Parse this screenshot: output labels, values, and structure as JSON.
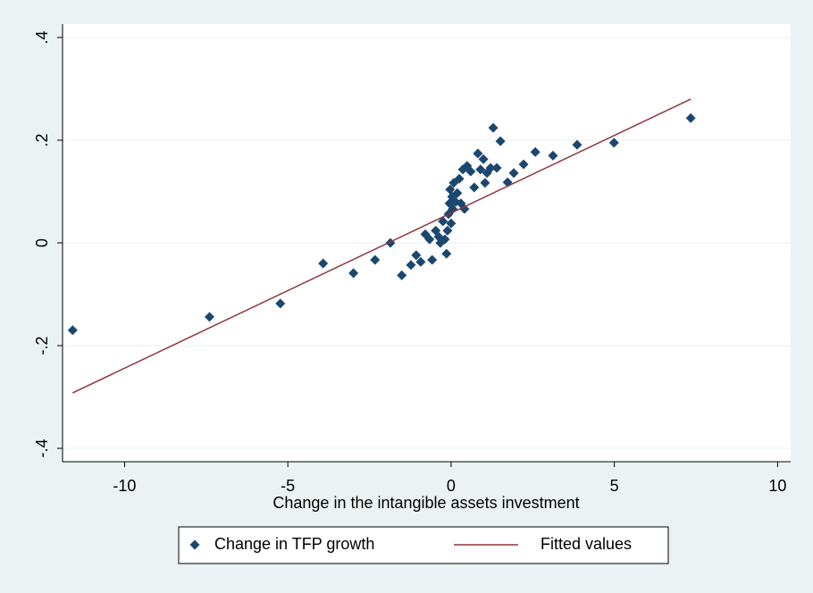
{
  "chart_data": {
    "type": "scatter",
    "xlabel": "Change in the intangible assets investment",
    "xlim": [
      -11.9,
      10.4
    ],
    "ylim": [
      -0.426,
      0.426
    ],
    "xticks": [
      -10,
      -5,
      0,
      5,
      10
    ],
    "yticks": [
      {
        "value": 0.4,
        "label": ".4"
      },
      {
        "value": 0.2,
        "label": ".2"
      },
      0,
      {
        "value": -0.2,
        "label": "-.2"
      },
      {
        "value": -0.4,
        "label": "-.4"
      }
    ],
    "grid": true,
    "legend": "bottom",
    "series": [
      {
        "name": "Change in TFP growth",
        "color": "#1a476f",
        "type": "scatter",
        "x": [
          -11.59,
          -7.4,
          -5.23,
          -3.92,
          -2.99,
          -2.33,
          -1.86,
          -1.51,
          -1.23,
          -1.07,
          -0.93,
          -0.79,
          -0.66,
          -0.58,
          -0.47,
          -0.38,
          -0.33,
          -0.25,
          -0.19,
          -0.14,
          -0.11,
          -0.08,
          -0.05,
          -0.03,
          0,
          0.03,
          0.05,
          0.08,
          0.14,
          0.19,
          0.25,
          0.3,
          0.36,
          0.41,
          0.49,
          0.6,
          0.71,
          0.82,
          0.9,
          0.99,
          1.04,
          1.1,
          1.21,
          1.29,
          1.4,
          1.51,
          1.73,
          1.92,
          2.22,
          2.58,
          3.12,
          3.86,
          4.99,
          7.34
        ],
        "values": [
          -0.17,
          -0.144,
          -0.118,
          -0.04,
          -0.059,
          -0.033,
          0.0,
          -0.063,
          -0.043,
          -0.024,
          -0.037,
          0.017,
          0.007,
          -0.033,
          0.024,
          0.012,
          0.0,
          0.042,
          0.007,
          -0.021,
          0.024,
          0.056,
          0.077,
          0.104,
          0.038,
          0.09,
          0.066,
          0.117,
          0.08,
          0.097,
          0.125,
          0.077,
          0.143,
          0.066,
          0.15,
          0.139,
          0.108,
          0.174,
          0.143,
          0.163,
          0.117,
          0.136,
          0.146,
          0.224,
          0.146,
          0.198,
          0.118,
          0.136,
          0.153,
          0.177,
          0.17,
          0.191,
          0.195,
          0.243
        ]
      },
      {
        "name": "Fitted values",
        "color": "#90353b",
        "type": "line",
        "x": [
          -11.59,
          7.34
        ],
        "values": [
          -0.292,
          0.28
        ]
      }
    ]
  }
}
